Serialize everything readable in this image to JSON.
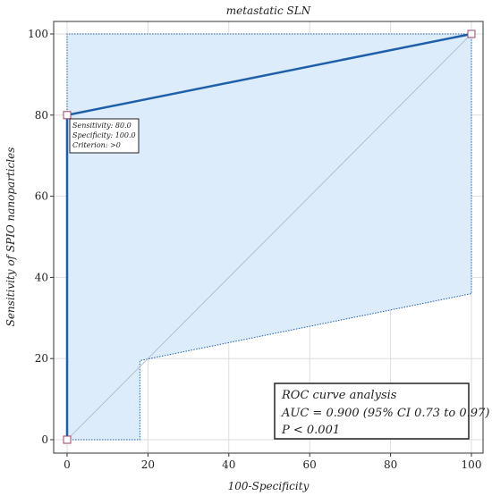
{
  "chart_data": {
    "type": "line",
    "title": "metastatic SLN",
    "xlabel": "100-Specificity",
    "ylabel": "Sensitivity of SPIO nanoparticles",
    "xlim": [
      0,
      100
    ],
    "ylim": [
      0,
      100
    ],
    "x_ticks": [
      0,
      20,
      40,
      60,
      80,
      100
    ],
    "y_ticks": [
      0,
      20,
      40,
      60,
      80,
      100
    ],
    "grid": true,
    "roc_curve": {
      "x": [
        0,
        0,
        100
      ],
      "y": [
        0,
        80,
        100
      ],
      "color": "#1f5fa8"
    },
    "confidence_band": {
      "upper": {
        "x": [
          0,
          0,
          100
        ],
        "y": [
          0,
          100,
          100
        ]
      },
      "lower": {
        "x": [
          0,
          18,
          18,
          100,
          100
        ],
        "y": [
          0,
          0,
          19.5,
          36,
          100
        ]
      },
      "fill": "#dcecfb",
      "stroke": "#1f5fa8"
    },
    "markers": [
      {
        "x": 0,
        "y": 0
      },
      {
        "x": 0,
        "y": 80
      },
      {
        "x": 100,
        "y": 100
      }
    ],
    "reference_line": {
      "x": [
        0,
        100
      ],
      "y": [
        0,
        100
      ]
    },
    "tooltip": {
      "lines": [
        "Sensitivity: 80.0",
        "Specificity: 100.0",
        "Criterion: >0"
      ]
    },
    "stats_box": {
      "lines": [
        "ROC curve analysis",
        "AUC = 0.900 (95% CI 0.73 to 0.97)",
        "P < 0.001"
      ]
    }
  }
}
